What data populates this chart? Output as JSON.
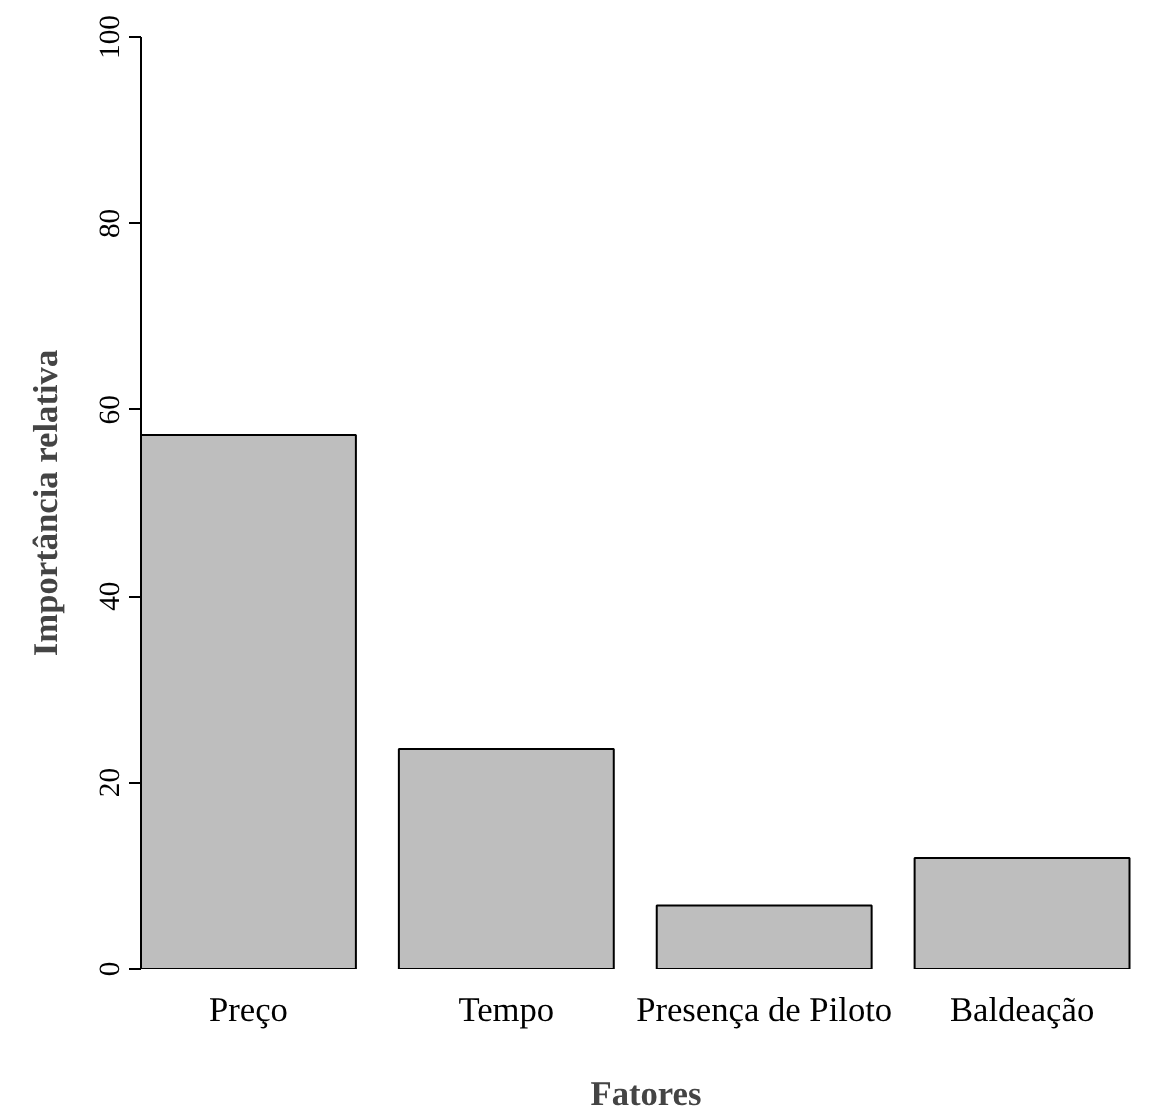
{
  "chart_data": {
    "type": "bar",
    "xlabel": "Fatores",
    "ylabel": "Importância relativa",
    "categories": [
      "Preço",
      "Tempo",
      "Presença de Piloto",
      "Baldeação"
    ],
    "values": [
      57.3,
      23.6,
      6.8,
      11.9
    ],
    "color": "#bebebe",
    "ylim": [
      0,
      100
    ],
    "yticks": [
      0,
      20,
      40,
      60,
      80,
      100
    ],
    "grid": false
  }
}
